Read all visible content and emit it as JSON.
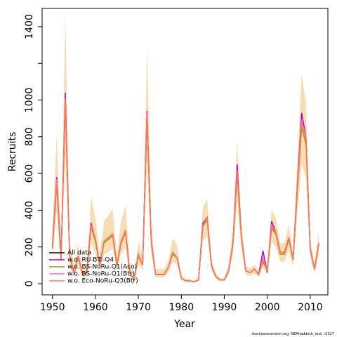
{
  "chart_data": {
    "type": "line",
    "x_label": "Year",
    "y_label": "Recruits",
    "footnote": "stockassessment.org, NEAhaddock_test, r2327",
    "xlim": [
      1947.6,
      2014.1
    ],
    "ylim": [
      -61,
      1499
    ],
    "xticks": [
      1950,
      1960,
      1970,
      1980,
      1990,
      2000,
      2010
    ],
    "yticks": [
      0,
      200,
      400,
      600,
      800,
      1000,
      {
        "value": 1200,
        "label": null
      },
      1400
    ],
    "legend": "bottom-left",
    "x": [
      1950,
      1951,
      1952,
      1953,
      1954,
      1955,
      1956,
      1957,
      1958,
      1959,
      1960,
      1961,
      1962,
      1963,
      1964,
      1965,
      1966,
      1967,
      1968,
      1969,
      1970,
      1971,
      1972,
      1973,
      1974,
      1975,
      1976,
      1977,
      1978,
      1979,
      1980,
      1981,
      1982,
      1983,
      1984,
      1985,
      1986,
      1987,
      1988,
      1989,
      1990,
      1991,
      1992,
      1993,
      1994,
      1995,
      1996,
      1997,
      1998,
      1999,
      2000,
      2001,
      2002,
      2003,
      2004,
      2005,
      2006,
      2007,
      2008,
      2009,
      2010,
      2011,
      2012
    ],
    "band": {
      "color": "#f5deb3",
      "upper": [
        300,
        810,
        200,
        1470,
        220,
        100,
        220,
        80,
        90,
        470,
        360,
        160,
        340,
        370,
        410,
        160,
        340,
        430,
        100,
        40,
        230,
        150,
        1290,
        330,
        80,
        80,
        80,
        130,
        250,
        210,
        50,
        25,
        25,
        18,
        32,
        420,
        460,
        140,
        60,
        30,
        30,
        100,
        290,
        780,
        320,
        95,
        85,
        105,
        70,
        170,
        95,
        400,
        360,
        220,
        220,
        320,
        170,
        680,
        1140,
        990,
        240,
        110,
        290
      ],
      "lower": [
        140,
        390,
        90,
        690,
        100,
        40,
        100,
        35,
        40,
        220,
        170,
        70,
        160,
        170,
        190,
        70,
        160,
        200,
        40,
        13,
        110,
        70,
        640,
        160,
        35,
        35,
        35,
        60,
        120,
        100,
        20,
        10,
        10,
        6,
        13,
        230,
        260,
        70,
        28,
        13,
        13,
        50,
        160,
        440,
        180,
        50,
        42,
        56,
        35,
        90,
        50,
        230,
        200,
        120,
        120,
        180,
        90,
        380,
        650,
        580,
        140,
        55,
        160
      ]
    },
    "series": [
      {
        "name": "All data",
        "color": "#000000",
        "values": [
          200,
          560,
          130,
          1000,
          150,
          60,
          150,
          50,
          60,
          320,
          240,
          100,
          230,
          250,
          270,
          100,
          230,
          290,
          60,
          20,
          160,
          100,
          920,
          230,
          50,
          50,
          50,
          90,
          170,
          140,
          30,
          15,
          15,
          10,
          20,
          320,
          360,
          100,
          40,
          20,
          20,
          70,
          220,
          610,
          250,
          70,
          60,
          80,
          50,
          130,
          70,
          310,
          280,
          170,
          170,
          250,
          130,
          520,
          880,
          790,
          190,
          80,
          220
        ]
      },
      {
        "name": "w.o. RU-BTr-Q4",
        "color": "#aa00cc",
        "values": [
          210,
          580,
          140,
          1040,
          150,
          60,
          150,
          50,
          60,
          330,
          240,
          100,
          230,
          250,
          270,
          100,
          230,
          290,
          60,
          20,
          160,
          100,
          940,
          230,
          50,
          50,
          50,
          90,
          170,
          140,
          30,
          15,
          15,
          10,
          20,
          330,
          360,
          100,
          40,
          20,
          20,
          70,
          220,
          650,
          250,
          70,
          60,
          80,
          50,
          180,
          60,
          340,
          280,
          170,
          170,
          250,
          130,
          540,
          930,
          800,
          190,
          80,
          220
        ]
      },
      {
        "name": "w.o. BS-NoRu-Q1(Aco)",
        "color": "#999900",
        "values": [
          190,
          540,
          130,
          980,
          150,
          60,
          150,
          50,
          60,
          310,
          230,
          100,
          220,
          240,
          260,
          100,
          220,
          280,
          60,
          20,
          150,
          100,
          900,
          220,
          50,
          50,
          50,
          90,
          160,
          140,
          30,
          15,
          15,
          10,
          20,
          310,
          350,
          100,
          40,
          20,
          20,
          70,
          210,
          590,
          240,
          70,
          60,
          80,
          50,
          120,
          70,
          300,
          270,
          160,
          160,
          240,
          130,
          500,
          850,
          760,
          180,
          80,
          210
        ]
      },
      {
        "name": "w.o. BS-NoRu-Q1(Btr)",
        "color": "#ff66cc",
        "values": [
          200,
          570,
          130,
          1010,
          150,
          60,
          150,
          50,
          60,
          320,
          240,
          100,
          230,
          250,
          270,
          100,
          230,
          290,
          60,
          20,
          160,
          100,
          930,
          230,
          50,
          50,
          50,
          90,
          170,
          140,
          30,
          15,
          15,
          10,
          20,
          320,
          360,
          100,
          40,
          20,
          20,
          70,
          220,
          620,
          250,
          70,
          60,
          80,
          50,
          140,
          70,
          320,
          280,
          170,
          170,
          250,
          130,
          530,
          890,
          800,
          190,
          80,
          220
        ]
      },
      {
        "name": "w.o. Eco-NoRu-Q3(Btr)",
        "color": "#ff7755",
        "values": [
          200,
          560,
          130,
          1000,
          150,
          60,
          150,
          50,
          60,
          320,
          240,
          100,
          230,
          250,
          270,
          100,
          230,
          290,
          60,
          20,
          160,
          100,
          920,
          230,
          50,
          50,
          50,
          90,
          170,
          140,
          30,
          15,
          15,
          10,
          20,
          320,
          360,
          100,
          40,
          20,
          20,
          70,
          220,
          610,
          250,
          70,
          60,
          80,
          50,
          130,
          70,
          310,
          280,
          170,
          170,
          250,
          130,
          520,
          880,
          790,
          190,
          80,
          220
        ]
      }
    ]
  }
}
